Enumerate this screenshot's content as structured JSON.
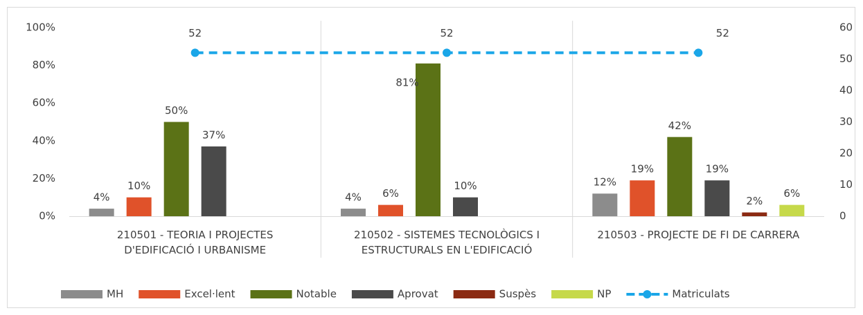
{
  "chart_data": {
    "type": "bar",
    "categories": [
      "210501 - TEORIA I PROJECTES D'EDIFICACIÓ I URBANISME",
      "210502 - SISTEMES TECNOLÒGICS I ESTRUCTURALS EN L'EDIFICACIÓ",
      "210503 - PROJECTE DE FI DE CARRERA"
    ],
    "series": [
      {
        "name": "MH",
        "color": "#8c8c8c",
        "values": [
          4,
          4,
          12
        ],
        "value_labels": [
          "4%",
          "4%",
          "12%"
        ]
      },
      {
        "name": "Excel·lent",
        "color": "#e0522a",
        "values": [
          10,
          6,
          19
        ],
        "value_labels": [
          "10%",
          "6%",
          "19%"
        ]
      },
      {
        "name": "Notable",
        "color": "#5b7216",
        "values": [
          50,
          81,
          42
        ],
        "value_labels": [
          "50%",
          "81%",
          "42%"
        ]
      },
      {
        "name": "Aprovat",
        "color": "#4a4a4a",
        "values": [
          37,
          10,
          19
        ],
        "value_labels": [
          "37%",
          "10%",
          "19%"
        ]
      },
      {
        "name": "Suspès",
        "color": "#8b2a12",
        "values": [
          null,
          null,
          2
        ],
        "value_labels": [
          null,
          null,
          "2%"
        ]
      },
      {
        "name": "NP",
        "color": "#c6d94a",
        "values": [
          null,
          null,
          6
        ],
        "value_labels": [
          null,
          null,
          "6%"
        ]
      },
      {
        "name": "Matriculats",
        "type": "line",
        "axis": "y2",
        "color": "#1aa6e8",
        "values": [
          52,
          52,
          52
        ]
      }
    ],
    "ylim": [
      0,
      100
    ],
    "yticks": [
      {
        "value": 0,
        "label": "0%"
      },
      {
        "value": 20,
        "label": "20%"
      },
      {
        "value": 40,
        "label": "40%"
      },
      {
        "value": 60,
        "label": "60%"
      },
      {
        "value": 80,
        "label": "80%"
      },
      {
        "value": 100,
        "label": "100%"
      }
    ],
    "y2lim": [
      0,
      60
    ],
    "y2ticks": [
      0,
      10,
      20,
      30,
      40,
      50,
      60
    ],
    "grid": false,
    "legend": "bottom"
  }
}
